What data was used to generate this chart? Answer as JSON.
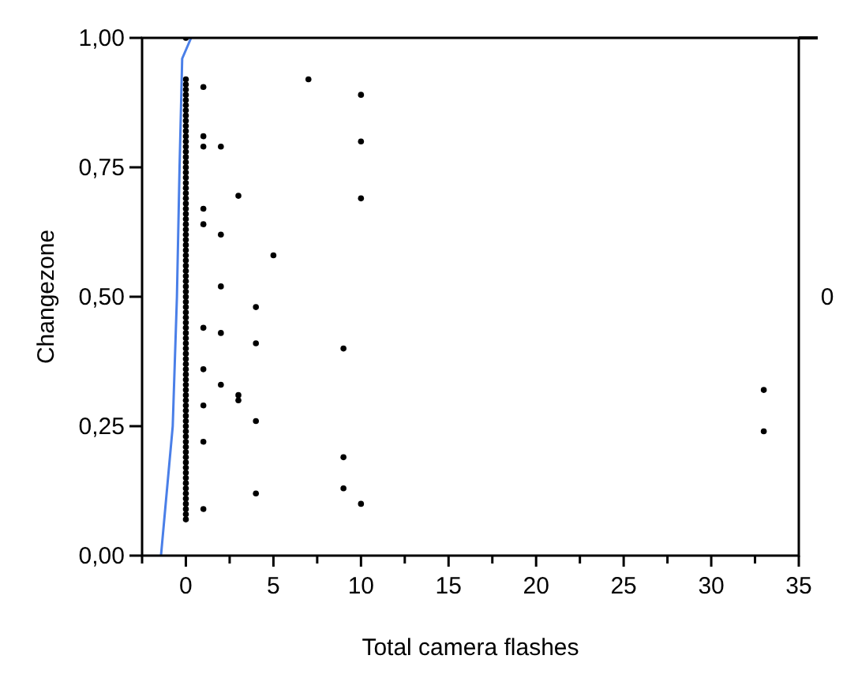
{
  "chart_data": {
    "type": "scatter",
    "xlabel": "Total camera flashes",
    "ylabel": "Changezone",
    "xlim": [
      -2.5,
      35
    ],
    "ylim": [
      0,
      1
    ],
    "xticks": [
      {
        "value": -2.5,
        "label": null
      },
      0,
      {
        "value": 2.5,
        "label": null
      },
      5,
      {
        "value": 7.5,
        "label": null
      },
      10,
      {
        "value": 12.5,
        "label": null
      },
      15,
      {
        "value": 17.5,
        "label": null
      },
      20,
      {
        "value": 22.5,
        "label": null
      },
      25,
      {
        "value": 27.5,
        "label": null
      },
      30,
      {
        "value": 32.5,
        "label": null
      },
      35
    ],
    "yticks": [
      {
        "value": 0,
        "label": "0,00"
      },
      {
        "value": 0.25,
        "label": "0,25"
      },
      {
        "value": 0.5,
        "label": "0,50"
      },
      {
        "value": 0.75,
        "label": "0,75"
      },
      {
        "value": 1,
        "label": "1,00"
      }
    ],
    "annotations": [
      "0"
    ],
    "grid": false,
    "marker": "circle",
    "series": [
      {
        "color": "#000000",
        "x": [
          0,
          0,
          0,
          0,
          0,
          0,
          0,
          0,
          0,
          0,
          0,
          0,
          0,
          0,
          0,
          0,
          0,
          0,
          0,
          0,
          0,
          0,
          0,
          0,
          0,
          0,
          0,
          0,
          0,
          0,
          0,
          0,
          0,
          0,
          0,
          0,
          0,
          0,
          0,
          0,
          0,
          0,
          0,
          0,
          0,
          0,
          0,
          0,
          0,
          0,
          0,
          0,
          0,
          0,
          0,
          0,
          0,
          0,
          0,
          0,
          0,
          0,
          0,
          0,
          0,
          0,
          0,
          0,
          0,
          0,
          0,
          0,
          0,
          0,
          0,
          0,
          0,
          0,
          0,
          0,
          0,
          0,
          0,
          0,
          0,
          0,
          0,
          1,
          7,
          10,
          1,
          1,
          2,
          10,
          3,
          10,
          1,
          1,
          2,
          5,
          2,
          4,
          1,
          2,
          4,
          9,
          1,
          2,
          3,
          3,
          1,
          4,
          1,
          9,
          4,
          9,
          10,
          1,
          33,
          33
        ],
        "values": [
          0.07,
          0.08,
          0.09,
          0.1,
          0.11,
          0.12,
          0.13,
          0.14,
          0.15,
          0.16,
          0.17,
          0.18,
          0.19,
          0.2,
          0.21,
          0.22,
          0.23,
          0.24,
          0.25,
          0.26,
          0.27,
          0.28,
          0.29,
          0.3,
          0.31,
          0.32,
          0.33,
          0.34,
          0.35,
          0.36,
          0.37,
          0.38,
          0.39,
          0.4,
          0.41,
          0.42,
          0.43,
          0.44,
          0.45,
          0.46,
          0.47,
          0.48,
          0.49,
          0.5,
          0.51,
          0.52,
          0.53,
          0.54,
          0.55,
          0.56,
          0.57,
          0.58,
          0.59,
          0.6,
          0.61,
          0.62,
          0.63,
          0.64,
          0.65,
          0.66,
          0.67,
          0.68,
          0.69,
          0.7,
          0.71,
          0.72,
          0.73,
          0.74,
          0.75,
          0.76,
          0.77,
          0.78,
          0.79,
          0.8,
          0.81,
          0.82,
          0.83,
          0.84,
          0.85,
          0.86,
          0.87,
          0.88,
          0.89,
          0.9,
          0.91,
          0.92,
          1.0,
          0.905,
          0.92,
          0.89,
          0.81,
          0.79,
          0.79,
          0.8,
          0.695,
          0.69,
          0.67,
          0.64,
          0.62,
          0.58,
          0.52,
          0.48,
          0.44,
          0.43,
          0.41,
          0.4,
          0.36,
          0.33,
          0.31,
          0.3,
          0.29,
          0.26,
          0.22,
          0.19,
          0.12,
          0.13,
          0.1,
          0.09,
          0.32,
          0.24
        ]
      },
      {
        "type": "line",
        "color": "#4a7fe8",
        "marker": "none",
        "x": [
          -1.42,
          -0.75,
          -0.51,
          -0.36,
          -0.21,
          0.3
        ],
        "values": [
          0,
          0.25,
          0.5,
          0.75,
          0.96,
          1
        ]
      }
    ]
  }
}
